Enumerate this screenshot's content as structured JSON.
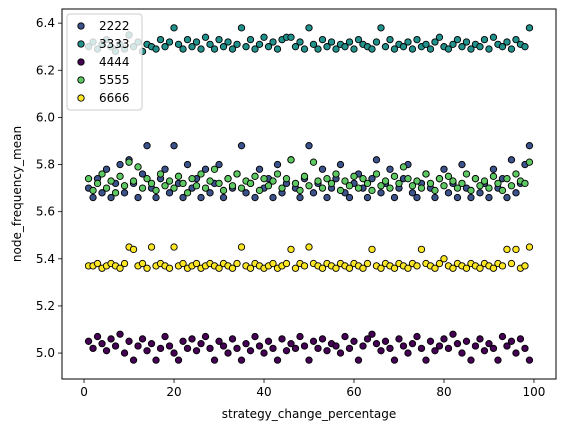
{
  "chart_data": {
    "type": "scatter",
    "title": "",
    "xlabel": "strategy_change_percentage",
    "ylabel": "node_frequency_mean",
    "xlim": [
      -4.9,
      104.9
    ],
    "ylim": [
      4.89,
      6.46
    ],
    "xticks": [
      0,
      20,
      40,
      60,
      80,
      100
    ],
    "yticks": [
      5.0,
      5.2,
      5.4,
      5.6,
      5.8,
      6.0,
      6.2,
      6.4
    ],
    "ytick_labels": [
      "5.0",
      "5.2",
      "5.4",
      "5.6",
      "5.8",
      "6.0",
      "6.2",
      "6.4"
    ],
    "grid": false,
    "legend_position": "top-left",
    "series": [
      {
        "name": "2222",
        "color": "#3b528b",
        "x": [
          1,
          2,
          3,
          4,
          5,
          6,
          7,
          8,
          9,
          10,
          11,
          12,
          13,
          14,
          15,
          16,
          17,
          18,
          19,
          20,
          21,
          22,
          23,
          24,
          25,
          26,
          27,
          28,
          29,
          30,
          31,
          32,
          33,
          34,
          35,
          36,
          37,
          38,
          39,
          40,
          41,
          42,
          43,
          44,
          45,
          46,
          47,
          48,
          49,
          50,
          51,
          52,
          53,
          54,
          55,
          56,
          57,
          58,
          59,
          60,
          61,
          62,
          63,
          64,
          65,
          66,
          67,
          68,
          69,
          70,
          71,
          72,
          73,
          74,
          75,
          76,
          77,
          78,
          79,
          80,
          81,
          82,
          83,
          84,
          85,
          86,
          87,
          88,
          89,
          90,
          91,
          92,
          93,
          94,
          95,
          96,
          97,
          98,
          99
        ],
        "y": [
          5.7,
          5.66,
          5.74,
          5.68,
          5.78,
          5.66,
          5.72,
          5.8,
          5.68,
          5.82,
          5.72,
          5.66,
          5.76,
          5.88,
          5.7,
          5.66,
          5.74,
          5.78,
          5.68,
          5.88,
          5.72,
          5.66,
          5.8,
          5.7,
          5.74,
          5.66,
          5.78,
          5.68,
          5.72,
          5.8,
          5.66,
          5.74,
          5.7,
          5.76,
          5.88,
          5.68,
          5.72,
          5.66,
          5.78,
          5.7,
          5.74,
          5.66,
          5.8,
          5.68,
          5.72,
          5.82,
          5.7,
          5.66,
          5.74,
          5.88,
          5.68,
          5.72,
          5.78,
          5.66,
          5.7,
          5.74,
          5.8,
          5.68,
          5.66,
          5.72,
          5.76,
          5.7,
          5.66,
          5.74,
          5.82,
          5.68,
          5.72,
          5.78,
          5.66,
          5.7,
          5.74,
          5.8,
          5.68,
          5.66,
          5.72,
          5.76,
          5.7,
          5.66,
          5.74,
          5.78,
          5.68,
          5.72,
          5.66,
          5.8,
          5.7,
          5.66,
          5.74,
          5.68,
          5.72,
          5.66,
          5.78,
          5.7,
          5.74,
          5.66,
          5.82,
          5.68,
          5.72,
          5.8,
          5.88
        ]
      },
      {
        "name": "3333",
        "color": "#21918c",
        "x": [
          1,
          2,
          3,
          4,
          5,
          6,
          7,
          8,
          9,
          10,
          11,
          12,
          13,
          14,
          15,
          16,
          17,
          18,
          19,
          20,
          21,
          22,
          23,
          24,
          25,
          26,
          27,
          28,
          29,
          30,
          31,
          32,
          33,
          34,
          35,
          36,
          37,
          38,
          39,
          40,
          41,
          42,
          43,
          44,
          45,
          46,
          47,
          48,
          49,
          50,
          51,
          52,
          53,
          54,
          55,
          56,
          57,
          58,
          59,
          60,
          61,
          62,
          63,
          64,
          65,
          66,
          67,
          68,
          69,
          70,
          71,
          72,
          73,
          74,
          75,
          76,
          77,
          78,
          79,
          80,
          81,
          82,
          83,
          84,
          85,
          86,
          87,
          88,
          89,
          90,
          91,
          92,
          93,
          94,
          95,
          96,
          97,
          98,
          99
        ],
        "y": [
          6.3,
          6.32,
          6.29,
          6.31,
          6.33,
          6.3,
          6.28,
          6.31,
          6.29,
          6.35,
          6.3,
          6.32,
          6.28,
          6.31,
          6.3,
          6.29,
          6.33,
          6.3,
          6.32,
          6.38,
          6.31,
          6.29,
          6.33,
          6.3,
          6.32,
          6.29,
          6.34,
          6.31,
          6.29,
          6.33,
          6.3,
          6.32,
          6.29,
          6.31,
          6.38,
          6.3,
          6.33,
          6.29,
          6.31,
          6.34,
          6.3,
          6.32,
          6.29,
          6.33,
          6.34,
          6.34,
          6.3,
          6.32,
          6.29,
          6.38,
          6.31,
          6.29,
          6.33,
          6.3,
          6.32,
          6.29,
          6.31,
          6.3,
          6.32,
          6.29,
          6.33,
          6.31,
          6.3,
          6.29,
          6.32,
          6.38,
          6.3,
          6.33,
          6.29,
          6.31,
          6.3,
          6.32,
          6.29,
          6.33,
          6.3,
          6.31,
          6.29,
          6.32,
          6.34,
          6.3,
          6.29,
          6.31,
          6.33,
          6.3,
          6.32,
          6.29,
          6.31,
          6.3,
          6.33,
          6.29,
          6.34,
          6.31,
          6.3,
          6.32,
          6.29,
          6.33,
          6.31,
          6.3,
          6.38
        ]
      },
      {
        "name": "4444",
        "color": "#440154",
        "x": [
          1,
          2,
          3,
          4,
          5,
          6,
          7,
          8,
          9,
          10,
          11,
          12,
          13,
          14,
          15,
          16,
          17,
          18,
          19,
          20,
          21,
          22,
          23,
          24,
          25,
          26,
          27,
          28,
          29,
          30,
          31,
          32,
          33,
          34,
          35,
          36,
          37,
          38,
          39,
          40,
          41,
          42,
          43,
          44,
          45,
          46,
          47,
          48,
          49,
          50,
          51,
          52,
          53,
          54,
          55,
          56,
          57,
          58,
          59,
          60,
          61,
          62,
          63,
          64,
          65,
          66,
          67,
          68,
          69,
          70,
          71,
          72,
          73,
          74,
          75,
          76,
          77,
          78,
          79,
          80,
          81,
          82,
          83,
          84,
          85,
          86,
          87,
          88,
          89,
          90,
          91,
          92,
          93,
          94,
          95,
          96,
          97,
          98,
          99
        ],
        "y": [
          5.05,
          5.02,
          5.07,
          5.04,
          5.01,
          5.06,
          5.03,
          5.08,
          5.0,
          5.05,
          4.97,
          5.03,
          5.06,
          5.01,
          5.04,
          4.97,
          5.02,
          5.07,
          5.03,
          5.0,
          4.97,
          5.05,
          5.02,
          5.06,
          5.01,
          5.04,
          5.07,
          5.02,
          4.97,
          5.05,
          5.03,
          5.0,
          5.06,
          5.02,
          4.97,
          5.04,
          5.01,
          5.07,
          5.03,
          5.0,
          5.05,
          5.02,
          4.97,
          5.06,
          5.01,
          5.04,
          5.02,
          5.07,
          5.03,
          4.97,
          5.05,
          5.02,
          5.06,
          5.01,
          5.04,
          5.03,
          5.0,
          5.07,
          5.02,
          5.05,
          4.97,
          5.03,
          5.06,
          5.08,
          5.04,
          5.01,
          5.05,
          5.02,
          4.97,
          5.06,
          5.03,
          5.0,
          5.04,
          5.07,
          5.02,
          4.97,
          5.05,
          5.01,
          5.03,
          5.06,
          5.02,
          5.08,
          5.04,
          5.0,
          5.05,
          4.97,
          5.03,
          5.06,
          5.01,
          5.04,
          5.02,
          4.97,
          5.07,
          5.03,
          5.05,
          5.0,
          5.06,
          5.02,
          4.97
        ]
      },
      {
        "name": "5555",
        "color": "#5ec962",
        "x": [
          1,
          2,
          3,
          4,
          5,
          6,
          7,
          8,
          9,
          10,
          11,
          12,
          13,
          14,
          15,
          16,
          17,
          18,
          19,
          20,
          21,
          22,
          23,
          24,
          25,
          26,
          27,
          28,
          29,
          30,
          31,
          32,
          33,
          34,
          35,
          36,
          37,
          38,
          39,
          40,
          41,
          42,
          43,
          44,
          45,
          46,
          47,
          48,
          49,
          50,
          51,
          52,
          53,
          54,
          55,
          56,
          57,
          58,
          59,
          60,
          61,
          62,
          63,
          64,
          65,
          66,
          67,
          68,
          69,
          70,
          71,
          72,
          73,
          74,
          75,
          76,
          77,
          78,
          79,
          80,
          81,
          82,
          83,
          84,
          85,
          86,
          87,
          88,
          89,
          90,
          91,
          92,
          93,
          94,
          95,
          96,
          97,
          98,
          99
        ],
        "y": [
          5.74,
          5.69,
          5.72,
          5.76,
          5.7,
          5.73,
          5.68,
          5.75,
          5.71,
          5.81,
          5.73,
          5.79,
          5.7,
          5.74,
          5.72,
          5.69,
          5.76,
          5.71,
          5.73,
          5.7,
          5.75,
          5.72,
          5.68,
          5.74,
          5.71,
          5.76,
          5.7,
          5.73,
          5.78,
          5.72,
          5.69,
          5.74,
          5.71,
          5.76,
          5.7,
          5.73,
          5.72,
          5.75,
          5.69,
          5.74,
          5.71,
          5.73,
          5.76,
          5.7,
          5.74,
          5.82,
          5.72,
          5.69,
          5.75,
          5.71,
          5.81,
          5.73,
          5.7,
          5.74,
          5.72,
          5.76,
          5.69,
          5.73,
          5.71,
          5.75,
          5.7,
          5.74,
          5.72,
          5.69,
          5.76,
          5.71,
          5.73,
          5.7,
          5.75,
          5.72,
          5.79,
          5.74,
          5.71,
          5.73,
          5.7,
          5.76,
          5.72,
          5.69,
          5.74,
          5.71,
          5.75,
          5.73,
          5.7,
          5.72,
          5.76,
          5.69,
          5.74,
          5.71,
          5.73,
          5.7,
          5.75,
          5.72,
          5.69,
          5.74,
          5.71,
          5.76,
          5.73,
          5.72,
          5.81
        ]
      },
      {
        "name": "6666",
        "color": "#fde725",
        "x": [
          1,
          2,
          3,
          4,
          5,
          6,
          7,
          8,
          9,
          10,
          11,
          12,
          13,
          14,
          15,
          16,
          17,
          18,
          19,
          20,
          21,
          22,
          23,
          24,
          25,
          26,
          27,
          28,
          29,
          30,
          31,
          32,
          33,
          34,
          35,
          36,
          37,
          38,
          39,
          40,
          41,
          42,
          43,
          44,
          45,
          46,
          47,
          48,
          49,
          50,
          51,
          52,
          53,
          54,
          55,
          56,
          57,
          58,
          59,
          60,
          61,
          62,
          63,
          64,
          65,
          66,
          67,
          68,
          69,
          70,
          71,
          72,
          73,
          74,
          75,
          76,
          77,
          78,
          79,
          80,
          81,
          82,
          83,
          84,
          85,
          86,
          87,
          88,
          89,
          90,
          91,
          92,
          93,
          94,
          95,
          96,
          97,
          98,
          99
        ],
        "y": [
          5.37,
          5.37,
          5.38,
          5.36,
          5.37,
          5.38,
          5.37,
          5.36,
          5.38,
          5.45,
          5.44,
          5.37,
          5.38,
          5.36,
          5.45,
          5.37,
          5.38,
          5.37,
          5.36,
          5.45,
          5.37,
          5.38,
          5.36,
          5.37,
          5.38,
          5.36,
          5.37,
          5.38,
          5.37,
          5.36,
          5.38,
          5.37,
          5.36,
          5.38,
          5.45,
          5.37,
          5.36,
          5.38,
          5.37,
          5.36,
          5.37,
          5.38,
          5.36,
          5.37,
          5.38,
          5.44,
          5.36,
          5.38,
          5.37,
          5.45,
          5.38,
          5.37,
          5.36,
          5.38,
          5.37,
          5.36,
          5.38,
          5.37,
          5.36,
          5.38,
          5.37,
          5.36,
          5.38,
          5.44,
          5.37,
          5.36,
          5.38,
          5.37,
          5.36,
          5.38,
          5.37,
          5.36,
          5.38,
          5.37,
          5.44,
          5.38,
          5.37,
          5.36,
          5.38,
          5.4,
          5.37,
          5.36,
          5.38,
          5.37,
          5.36,
          5.38,
          5.37,
          5.36,
          5.38,
          5.37,
          5.36,
          5.38,
          5.37,
          5.44,
          5.38,
          5.44,
          5.36,
          5.37,
          5.45
        ]
      }
    ]
  }
}
